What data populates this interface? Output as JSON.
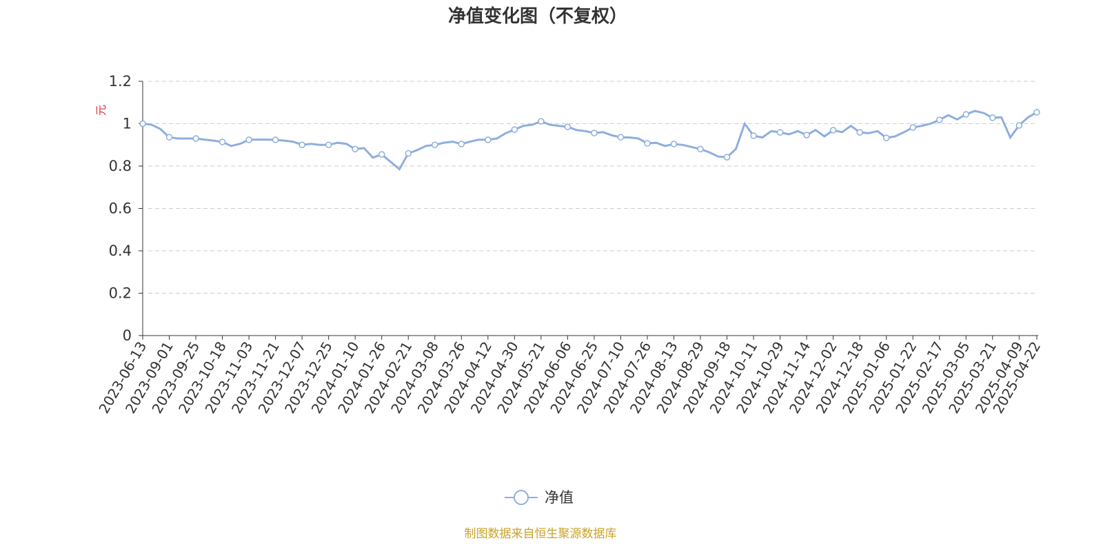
{
  "chart_data": {
    "type": "line",
    "title": "净值变化图（不复权）",
    "y_label": "元",
    "source": "制图数据来自恒生聚源数据库",
    "categories": [
      "2023-06-13",
      null,
      null,
      "2023-09-01",
      null,
      null,
      "2023-09-25",
      null,
      null,
      "2023-10-18",
      null,
      null,
      "2023-11-03",
      null,
      null,
      "2023-11-21",
      null,
      null,
      "2023-12-07",
      null,
      null,
      "2023-12-25",
      null,
      null,
      "2024-01-10",
      null,
      null,
      "2024-01-26",
      null,
      null,
      "2024-02-21",
      null,
      null,
      "2024-03-08",
      null,
      null,
      "2024-03-26",
      null,
      null,
      "2024-04-12",
      null,
      null,
      "2024-04-30",
      null,
      null,
      "2024-05-21",
      null,
      null,
      "2024-06-06",
      null,
      null,
      "2024-06-25",
      null,
      null,
      "2024-07-10",
      null,
      null,
      "2024-07-26",
      null,
      null,
      "2024-08-13",
      null,
      null,
      "2024-08-29",
      null,
      null,
      "2024-09-18",
      null,
      null,
      "2024-10-11",
      null,
      null,
      "2024-10-29",
      null,
      null,
      "2024-11-14",
      null,
      null,
      "2024-12-02",
      null,
      null,
      "2024-12-18",
      null,
      null,
      "2025-01-06",
      null,
      null,
      "2025-01-22",
      null,
      null,
      "2025-02-17",
      null,
      null,
      "2025-03-05",
      null,
      null,
      "2025-03-21",
      null,
      null,
      "2025-04-09",
      null,
      "2025-04-22"
    ],
    "series": [
      {
        "name": "净值",
        "color": "#8eaedd",
        "values": [
          1.0,
          0.995,
          0.975,
          0.936,
          0.93,
          0.93,
          0.93,
          0.925,
          0.92,
          0.914,
          0.895,
          0.905,
          0.924,
          0.925,
          0.925,
          0.924,
          0.92,
          0.915,
          0.9,
          0.905,
          0.9,
          0.9,
          0.91,
          0.905,
          0.88,
          0.885,
          0.84,
          0.855,
          0.82,
          0.785,
          0.86,
          0.875,
          0.895,
          0.9,
          0.91,
          0.915,
          0.904,
          0.915,
          0.925,
          0.924,
          0.93,
          0.955,
          0.972,
          0.99,
          0.995,
          1.011,
          0.995,
          0.99,
          0.985,
          0.97,
          0.965,
          0.956,
          0.96,
          0.945,
          0.936,
          0.935,
          0.93,
          0.907,
          0.91,
          0.895,
          0.904,
          0.9,
          0.89,
          0.88,
          0.865,
          0.845,
          0.842,
          0.88,
          1.0,
          0.943,
          0.935,
          0.965,
          0.959,
          0.95,
          0.965,
          0.946,
          0.97,
          0.94,
          0.969,
          0.96,
          0.99,
          0.959,
          0.955,
          0.965,
          0.933,
          0.94,
          0.96,
          0.982,
          0.99,
          1.0,
          1.018,
          1.04,
          1.02,
          1.044,
          1.06,
          1.05,
          1.028,
          1.03,
          0.935,
          0.992,
          1.03,
          1.054
        ]
      }
    ],
    "ylim": [
      0,
      1.2
    ],
    "yticks": [
      0,
      0.2,
      0.4,
      0.6,
      0.8,
      1,
      1.2
    ],
    "grid": true
  }
}
